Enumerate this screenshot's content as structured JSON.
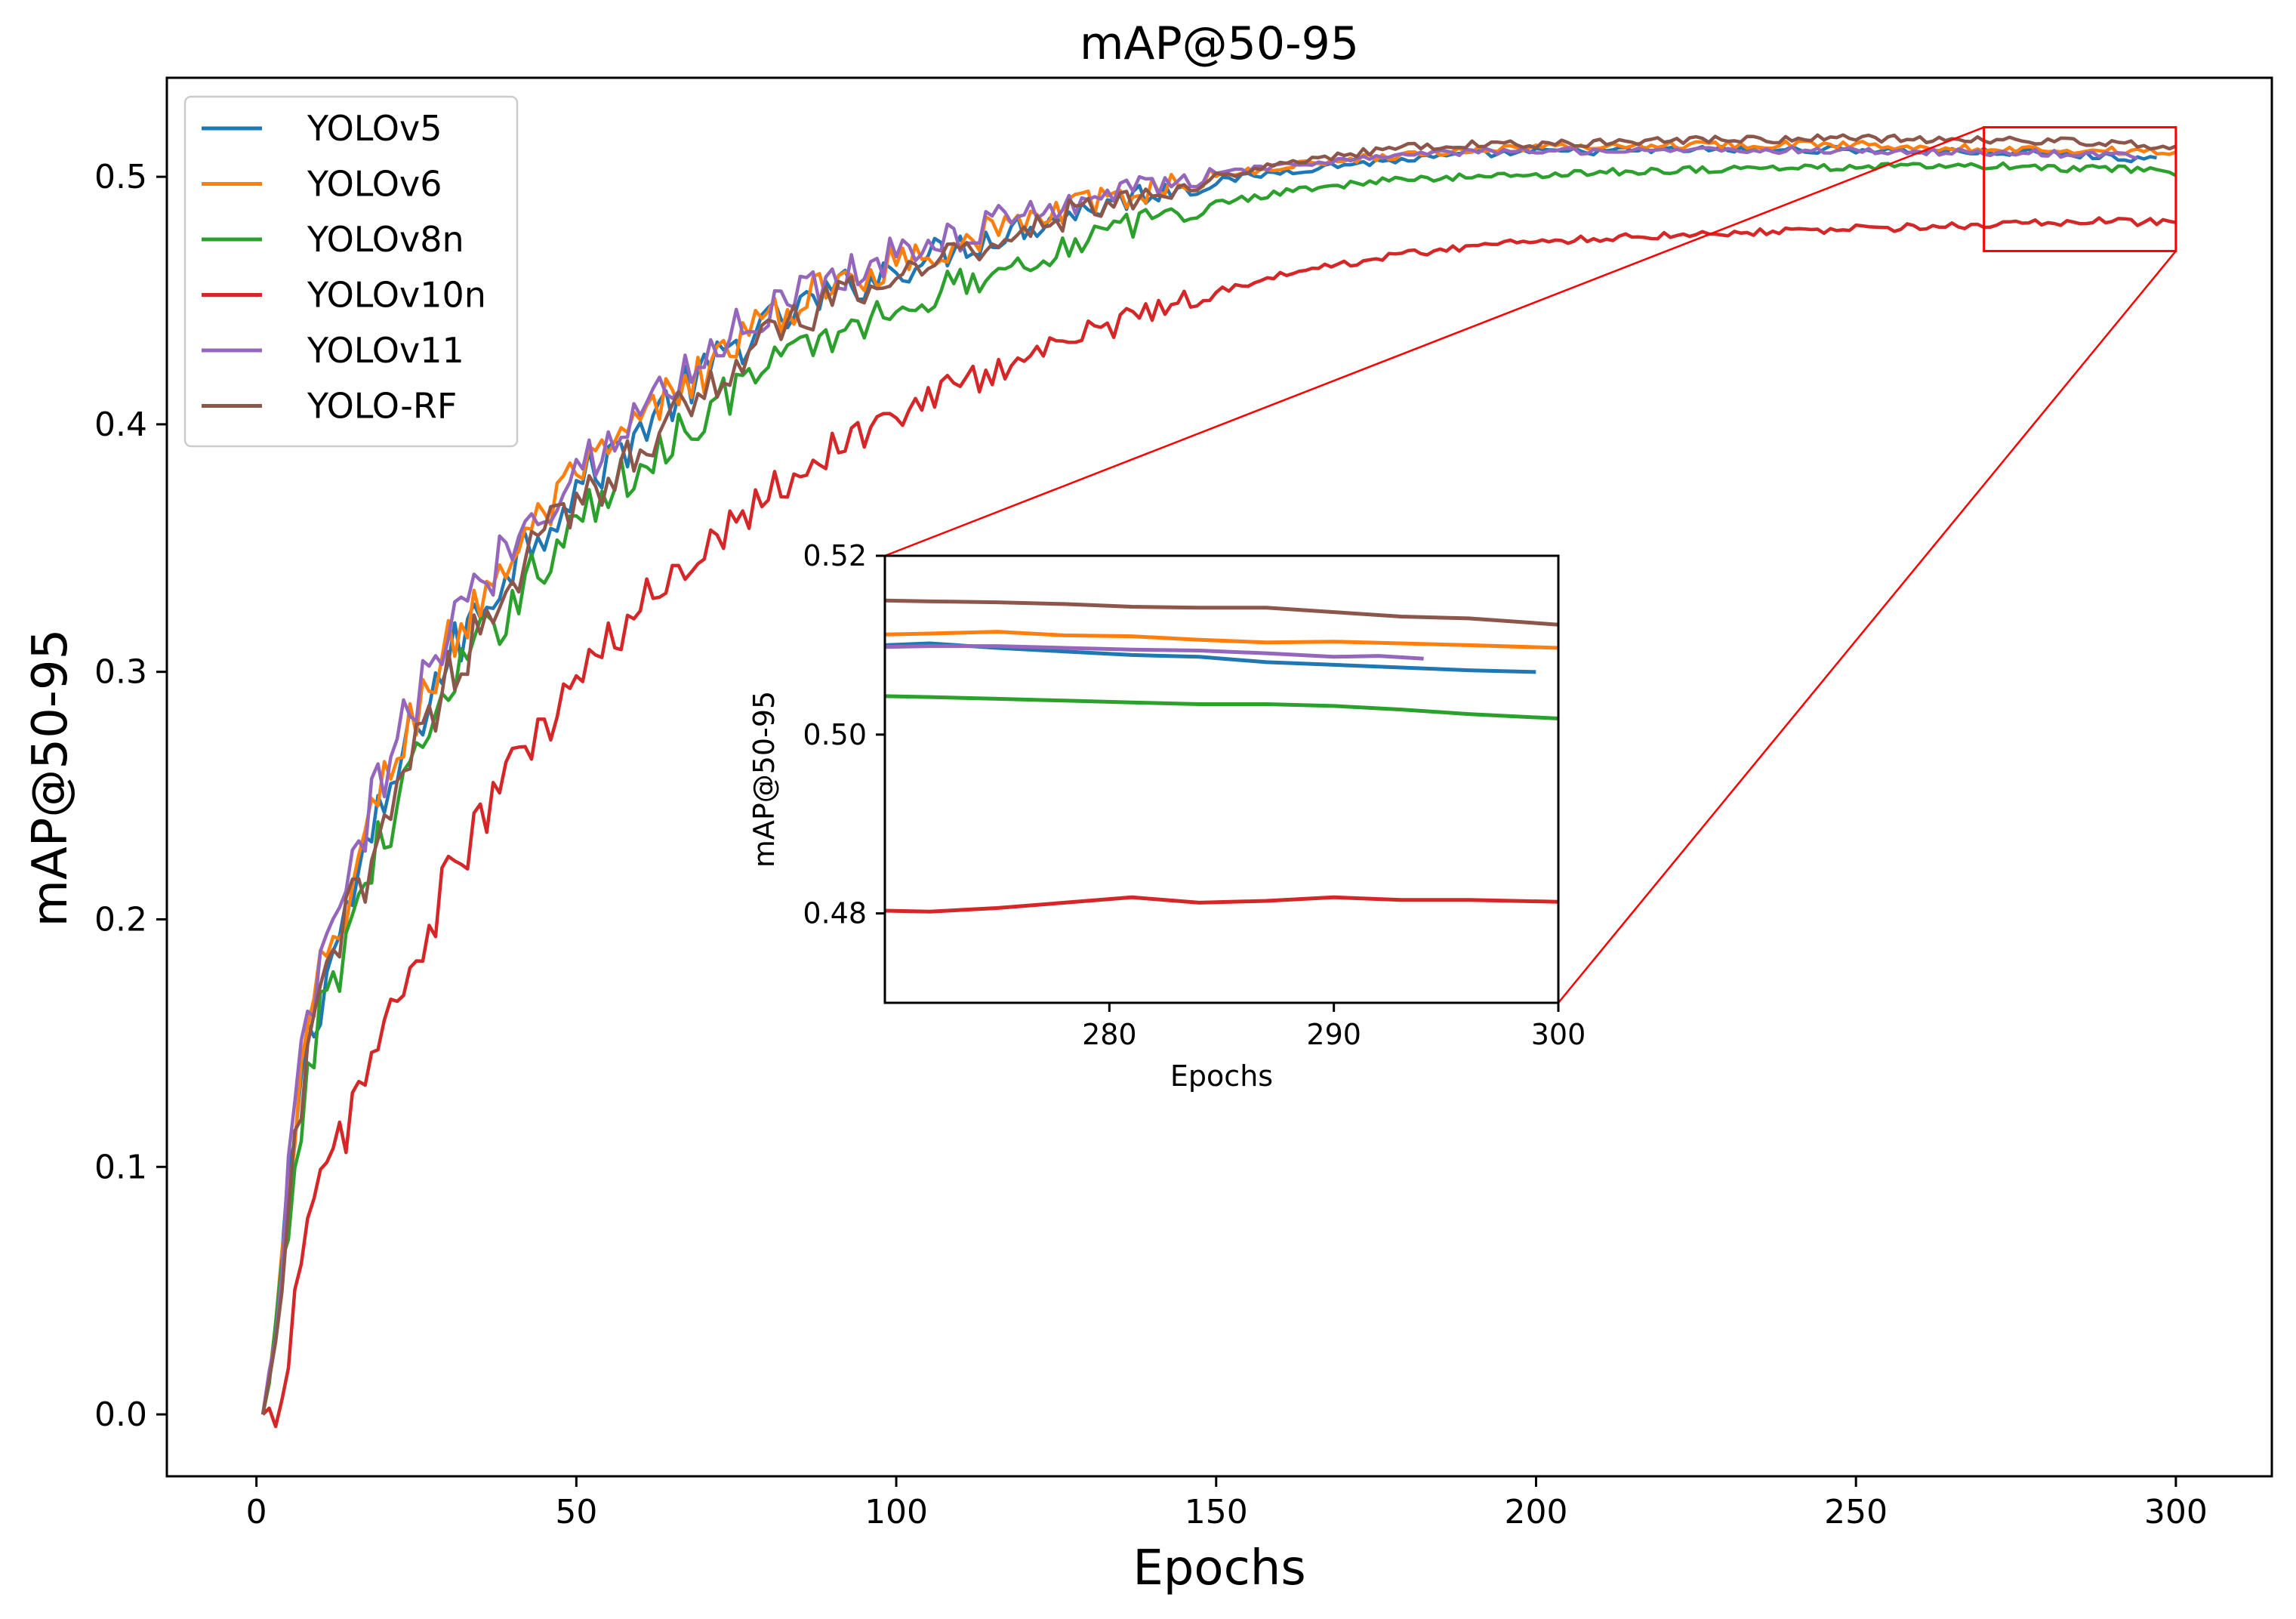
{
  "chart_data": {
    "type": "line",
    "title": "mAP@50-95",
    "xlabel": "Epochs",
    "ylabel": "mAP@50-95",
    "xlim": [
      -14,
      315
    ],
    "ylim": [
      -0.025,
      0.54
    ],
    "xticks": [
      "0",
      "50",
      "100",
      "150",
      "200",
      "250",
      "300"
    ],
    "yticks": [
      "0.0",
      "0.1",
      "0.2",
      "0.3",
      "0.4",
      "0.5"
    ],
    "grid": false,
    "legend_position": "top-left",
    "series": [
      {
        "name": "YOLOv5",
        "color": "#1f77b4",
        "points": [
          [
            1,
            0.0
          ],
          [
            3,
            0.03
          ],
          [
            5,
            0.09
          ],
          [
            7,
            0.14
          ],
          [
            10,
            0.17
          ],
          [
            15,
            0.21
          ],
          [
            20,
            0.245
          ],
          [
            25,
            0.28
          ],
          [
            30,
            0.305
          ],
          [
            35,
            0.325
          ],
          [
            40,
            0.345
          ],
          [
            45,
            0.36
          ],
          [
            50,
            0.375
          ],
          [
            55,
            0.385
          ],
          [
            60,
            0.398
          ],
          [
            65,
            0.41
          ],
          [
            70,
            0.42
          ],
          [
            75,
            0.432
          ],
          [
            80,
            0.44
          ],
          [
            90,
            0.453
          ],
          [
            100,
            0.463
          ],
          [
            110,
            0.472
          ],
          [
            120,
            0.48
          ],
          [
            130,
            0.487
          ],
          [
            140,
            0.494
          ],
          [
            150,
            0.498
          ],
          [
            160,
            0.502
          ],
          [
            170,
            0.505
          ],
          [
            180,
            0.507
          ],
          [
            190,
            0.509
          ],
          [
            200,
            0.51
          ],
          [
            225,
            0.511
          ],
          [
            250,
            0.511
          ],
          [
            270,
            0.51
          ],
          [
            280,
            0.5095
          ],
          [
            290,
            0.508
          ],
          [
            297,
            0.507
          ]
        ],
        "zoom_points": [
          [
            270,
            0.51
          ],
          [
            272,
            0.5102
          ],
          [
            275,
            0.5097
          ],
          [
            278,
            0.5093
          ],
          [
            281,
            0.5089
          ],
          [
            284,
            0.5087
          ],
          [
            287,
            0.5081
          ],
          [
            290,
            0.5078
          ],
          [
            293,
            0.5075
          ],
          [
            296,
            0.5072
          ],
          [
            299,
            0.507
          ]
        ]
      },
      {
        "name": "YOLOv6",
        "color": "#ff7f0e",
        "points": [
          [
            1,
            0.0
          ],
          [
            3,
            0.03
          ],
          [
            5,
            0.085
          ],
          [
            7,
            0.135
          ],
          [
            10,
            0.175
          ],
          [
            15,
            0.215
          ],
          [
            20,
            0.255
          ],
          [
            25,
            0.285
          ],
          [
            30,
            0.31
          ],
          [
            35,
            0.33
          ],
          [
            40,
            0.348
          ],
          [
            45,
            0.363
          ],
          [
            50,
            0.377
          ],
          [
            55,
            0.388
          ],
          [
            60,
            0.4
          ],
          [
            65,
            0.412
          ],
          [
            70,
            0.422
          ],
          [
            75,
            0.433
          ],
          [
            80,
            0.442
          ],
          [
            90,
            0.456
          ],
          [
            100,
            0.466
          ],
          [
            110,
            0.474
          ],
          [
            120,
            0.482
          ],
          [
            130,
            0.489
          ],
          [
            140,
            0.495
          ],
          [
            150,
            0.5
          ],
          [
            160,
            0.504
          ],
          [
            170,
            0.507
          ],
          [
            180,
            0.509
          ],
          [
            190,
            0.511
          ],
          [
            200,
            0.512
          ],
          [
            225,
            0.513
          ],
          [
            250,
            0.513
          ],
          [
            270,
            0.5115
          ],
          [
            280,
            0.511
          ],
          [
            290,
            0.5105
          ],
          [
            300,
            0.51
          ]
        ],
        "zoom_points": [
          [
            270,
            0.5112
          ],
          [
            272,
            0.5113
          ],
          [
            275,
            0.5115
          ],
          [
            278,
            0.5111
          ],
          [
            281,
            0.511
          ],
          [
            284,
            0.5106
          ],
          [
            287,
            0.5103
          ],
          [
            290,
            0.5104
          ],
          [
            293,
            0.5102
          ],
          [
            296,
            0.51
          ],
          [
            300,
            0.5097
          ]
        ]
      },
      {
        "name": "YOLOv8n",
        "color": "#2ca02c",
        "points": [
          [
            1,
            0.0
          ],
          [
            3,
            0.025
          ],
          [
            5,
            0.075
          ],
          [
            7,
            0.12
          ],
          [
            10,
            0.16
          ],
          [
            15,
            0.2
          ],
          [
            20,
            0.235
          ],
          [
            25,
            0.265
          ],
          [
            30,
            0.29
          ],
          [
            35,
            0.31
          ],
          [
            40,
            0.33
          ],
          [
            45,
            0.345
          ],
          [
            50,
            0.36
          ],
          [
            55,
            0.372
          ],
          [
            60,
            0.383
          ],
          [
            65,
            0.395
          ],
          [
            70,
            0.405
          ],
          [
            75,
            0.415
          ],
          [
            80,
            0.423
          ],
          [
            90,
            0.436
          ],
          [
            100,
            0.447
          ],
          [
            110,
            0.457
          ],
          [
            120,
            0.466
          ],
          [
            130,
            0.475
          ],
          [
            140,
            0.483
          ],
          [
            150,
            0.489
          ],
          [
            160,
            0.494
          ],
          [
            170,
            0.497
          ],
          [
            180,
            0.499
          ],
          [
            190,
            0.5
          ],
          [
            200,
            0.501
          ],
          [
            225,
            0.503
          ],
          [
            250,
            0.504
          ],
          [
            270,
            0.5043
          ],
          [
            280,
            0.5035
          ],
          [
            290,
            0.503
          ],
          [
            300,
            0.502
          ]
        ],
        "zoom_points": [
          [
            270,
            0.5043
          ],
          [
            272,
            0.5042
          ],
          [
            275,
            0.504
          ],
          [
            278,
            0.5038
          ],
          [
            281,
            0.5036
          ],
          [
            284,
            0.5034
          ],
          [
            287,
            0.5034
          ],
          [
            290,
            0.5032
          ],
          [
            293,
            0.5028
          ],
          [
            296,
            0.5023
          ],
          [
            300,
            0.5018
          ]
        ]
      },
      {
        "name": "YOLOv10n",
        "color": "#d62728",
        "points": [
          [
            1,
            0.0
          ],
          [
            3,
            0.005
          ],
          [
            5,
            0.03
          ],
          [
            7,
            0.06
          ],
          [
            10,
            0.09
          ],
          [
            15,
            0.125
          ],
          [
            20,
            0.155
          ],
          [
            25,
            0.185
          ],
          [
            30,
            0.215
          ],
          [
            35,
            0.24
          ],
          [
            40,
            0.26
          ],
          [
            45,
            0.278
          ],
          [
            50,
            0.295
          ],
          [
            55,
            0.31
          ],
          [
            60,
            0.325
          ],
          [
            65,
            0.34
          ],
          [
            70,
            0.352
          ],
          [
            75,
            0.363
          ],
          [
            80,
            0.373
          ],
          [
            90,
            0.39
          ],
          [
            100,
            0.404
          ],
          [
            110,
            0.416
          ],
          [
            120,
            0.427
          ],
          [
            130,
            0.437
          ],
          [
            140,
            0.446
          ],
          [
            150,
            0.454
          ],
          [
            160,
            0.46
          ],
          [
            170,
            0.465
          ],
          [
            180,
            0.469
          ],
          [
            190,
            0.472
          ],
          [
            200,
            0.474
          ],
          [
            225,
            0.477
          ],
          [
            250,
            0.479
          ],
          [
            270,
            0.4805
          ],
          [
            280,
            0.4815
          ],
          [
            290,
            0.482
          ],
          [
            300,
            0.4815
          ]
        ],
        "zoom_points": [
          [
            270,
            0.4803
          ],
          [
            272,
            0.4802
          ],
          [
            275,
            0.4806
          ],
          [
            278,
            0.4812
          ],
          [
            281,
            0.4818
          ],
          [
            284,
            0.4812
          ],
          [
            287,
            0.4814
          ],
          [
            290,
            0.4818
          ],
          [
            293,
            0.4815
          ],
          [
            296,
            0.4815
          ],
          [
            300,
            0.4813
          ]
        ]
      },
      {
        "name": "YOLOv11",
        "color": "#9467bd",
        "points": [
          [
            1,
            0.0
          ],
          [
            3,
            0.035
          ],
          [
            5,
            0.095
          ],
          [
            7,
            0.14
          ],
          [
            10,
            0.18
          ],
          [
            15,
            0.22
          ],
          [
            20,
            0.26
          ],
          [
            25,
            0.29
          ],
          [
            30,
            0.315
          ],
          [
            35,
            0.335
          ],
          [
            40,
            0.353
          ],
          [
            45,
            0.368
          ],
          [
            50,
            0.382
          ],
          [
            55,
            0.393
          ],
          [
            60,
            0.405
          ],
          [
            65,
            0.417
          ],
          [
            70,
            0.428
          ],
          [
            75,
            0.438
          ],
          [
            80,
            0.447
          ],
          [
            90,
            0.46
          ],
          [
            100,
            0.469
          ],
          [
            110,
            0.477
          ],
          [
            120,
            0.485
          ],
          [
            130,
            0.492
          ],
          [
            140,
            0.497
          ],
          [
            150,
            0.501
          ],
          [
            160,
            0.504
          ],
          [
            170,
            0.507
          ],
          [
            180,
            0.509
          ],
          [
            190,
            0.51
          ],
          [
            200,
            0.5105
          ],
          [
            225,
            0.511
          ],
          [
            250,
            0.5105
          ],
          [
            270,
            0.5098
          ],
          [
            280,
            0.5095
          ],
          [
            294,
            0.5085
          ]
        ],
        "zoom_points": [
          [
            270,
            0.5098
          ],
          [
            272,
            0.5099
          ],
          [
            275,
            0.5099
          ],
          [
            278,
            0.5097
          ],
          [
            281,
            0.5095
          ],
          [
            284,
            0.5094
          ],
          [
            287,
            0.5091
          ],
          [
            290,
            0.5087
          ],
          [
            292,
            0.5088
          ],
          [
            294,
            0.5085
          ]
        ]
      },
      {
        "name": "YOLO-RF",
        "color": "#8c564b",
        "points": [
          [
            1,
            0.0
          ],
          [
            3,
            0.028
          ],
          [
            5,
            0.08
          ],
          [
            7,
            0.125
          ],
          [
            10,
            0.168
          ],
          [
            15,
            0.205
          ],
          [
            20,
            0.242
          ],
          [
            25,
            0.272
          ],
          [
            30,
            0.298
          ],
          [
            35,
            0.318
          ],
          [
            40,
            0.338
          ],
          [
            45,
            0.353
          ],
          [
            50,
            0.368
          ],
          [
            55,
            0.38
          ],
          [
            60,
            0.392
          ],
          [
            65,
            0.404
          ],
          [
            70,
            0.414
          ],
          [
            75,
            0.425
          ],
          [
            80,
            0.435
          ],
          [
            90,
            0.449
          ],
          [
            100,
            0.46
          ],
          [
            110,
            0.47
          ],
          [
            120,
            0.479
          ],
          [
            130,
            0.487
          ],
          [
            140,
            0.494
          ],
          [
            150,
            0.5
          ],
          [
            160,
            0.505
          ],
          [
            170,
            0.509
          ],
          [
            180,
            0.512
          ],
          [
            190,
            0.513
          ],
          [
            200,
            0.513
          ],
          [
            225,
            0.515
          ],
          [
            250,
            0.5155
          ],
          [
            270,
            0.515
          ],
          [
            280,
            0.5145
          ],
          [
            290,
            0.5133
          ],
          [
            300,
            0.5123
          ]
        ],
        "zoom_points": [
          [
            270,
            0.515
          ],
          [
            272,
            0.5149
          ],
          [
            275,
            0.5148
          ],
          [
            278,
            0.5146
          ],
          [
            281,
            0.5143
          ],
          [
            284,
            0.5142
          ],
          [
            287,
            0.5142
          ],
          [
            290,
            0.5137
          ],
          [
            293,
            0.5132
          ],
          [
            296,
            0.513
          ],
          [
            300,
            0.5123
          ]
        ]
      }
    ],
    "inset": {
      "xlabel": "Epochs",
      "ylabel": "mAP@50-95",
      "xlim": [
        270,
        300
      ],
      "ylim": [
        0.47,
        0.52
      ],
      "xticks": [
        "280",
        "290",
        "300"
      ],
      "yticks": [
        "0.48",
        "0.50",
        "0.52"
      ],
      "zoom_region_color": "#ff0000"
    }
  }
}
